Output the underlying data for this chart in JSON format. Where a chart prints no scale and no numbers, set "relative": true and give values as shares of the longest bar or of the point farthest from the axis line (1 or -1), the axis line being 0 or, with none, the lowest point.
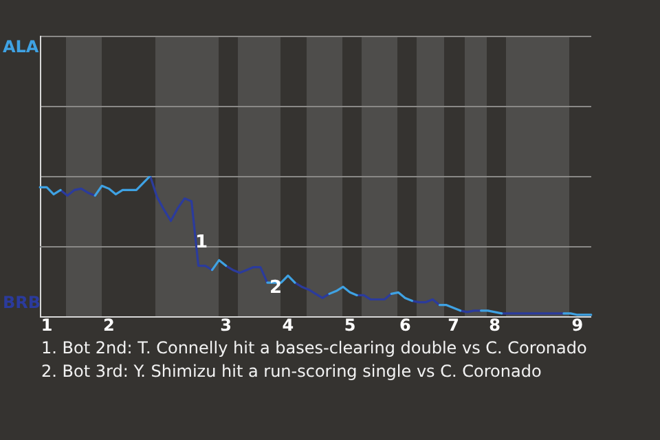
{
  "chart_data": {
    "type": "line",
    "relative": true,
    "categories": [
      null,
      "1",
      null,
      null,
      null,
      null,
      null,
      null,
      null,
      null,
      "2",
      null,
      null,
      null,
      null,
      null,
      null,
      null,
      null,
      null,
      null,
      null,
      null,
      null,
      null,
      null,
      null,
      "3",
      null,
      null,
      null,
      null,
      null,
      null,
      null,
      null,
      "4",
      null,
      null,
      null,
      null,
      null,
      null,
      null,
      null,
      "5",
      null,
      null,
      null,
      null,
      null,
      null,
      null,
      "6",
      null,
      null,
      null,
      null,
      null,
      null,
      "7",
      null,
      null,
      null,
      null,
      null,
      "8",
      null,
      null,
      null,
      null,
      null,
      null,
      null,
      null,
      null,
      null,
      null,
      "9",
      null,
      null
    ],
    "series": [
      {
        "color": "#3fa2e3",
        "values": [
          0.92,
          0.92,
          0.87,
          0.9,
          null,
          null,
          null,
          null,
          0.86,
          0.93,
          0.91,
          0.87,
          0.9,
          0.9,
          0.9,
          0.95,
          1,
          null,
          null,
          null,
          null,
          null,
          null,
          null,
          null,
          0.33,
          0.4,
          0.36,
          null,
          null,
          null,
          null,
          null,
          0.24,
          0.24,
          0.24,
          0.29,
          0.24,
          null,
          null,
          null,
          null,
          0.16,
          0.18,
          0.21,
          0.17,
          0.15,
          null,
          null,
          null,
          null,
          0.16,
          0.17,
          0.13,
          0.11,
          null,
          null,
          null,
          0.08,
          0.08,
          0.06,
          0.04,
          null,
          null,
          0.04,
          0.04,
          0.03,
          0.02,
          null,
          null,
          null,
          null,
          null,
          null,
          null,
          null,
          0.02,
          0.02,
          0.01,
          0.01,
          0.01
        ]
      },
      {
        "color": "#2b3b9c",
        "values": [
          null,
          null,
          null,
          0.9,
          0.86,
          0.9,
          0.91,
          0.88,
          0.86,
          null,
          null,
          null,
          null,
          null,
          null,
          null,
          1,
          0.85,
          0.76,
          0.68,
          0.77,
          0.84,
          0.82,
          0.36,
          0.36,
          0.33,
          null,
          0.36,
          0.33,
          0.31,
          0.33,
          0.35,
          0.35,
          0.24,
          null,
          null,
          null,
          0.24,
          0.21,
          0.19,
          0.16,
          0.13,
          0.16,
          null,
          null,
          null,
          0.15,
          0.15,
          0.12,
          0.12,
          0.12,
          0.16,
          null,
          null,
          0.11,
          0.1,
          0.1,
          0.12,
          0.08,
          null,
          null,
          0.04,
          0.03,
          0.04,
          0.04,
          null,
          null,
          0.02,
          0.02,
          0.02,
          0.02,
          0.02,
          0.02,
          0.02,
          0.02,
          0.02,
          0.02,
          null,
          null,
          null,
          null
        ]
      }
    ],
    "marker": "none",
    "ref_lines": [
      {
        "axis": "y",
        "value": 0.5,
        "color": "#8a8987"
      }
    ],
    "annotations": [
      "ALA",
      "BRB",
      "1",
      "2",
      "1. Bot 2nd: T. Connelly hit a bases-clearing double vs C. Coronado",
      "2. Bot 3rd: Y. Shimizu hit a run-scoring single vs C. Coronado"
    ]
  }
}
